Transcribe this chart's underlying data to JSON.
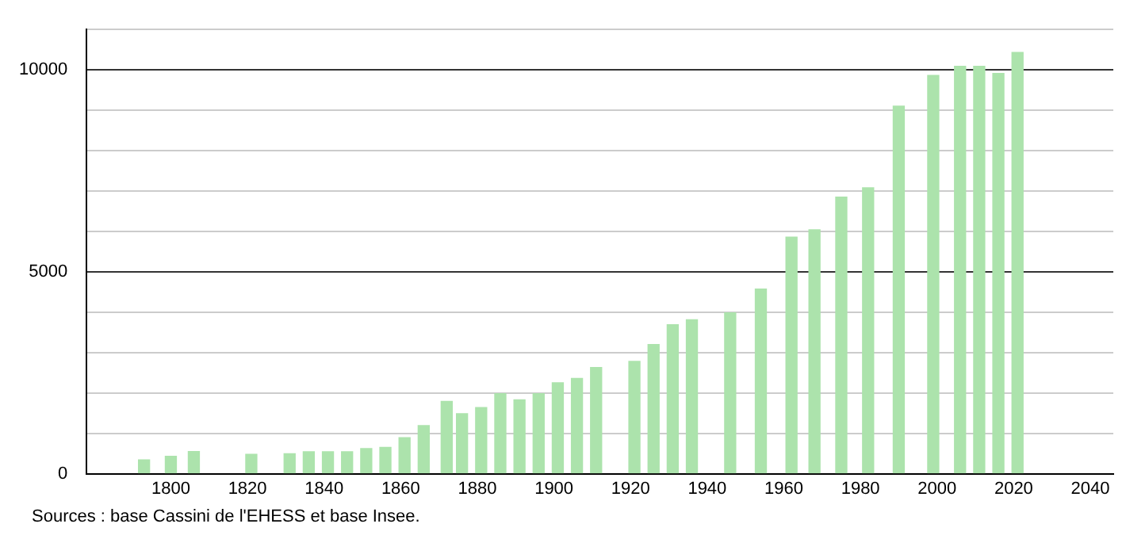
{
  "chart_data": {
    "type": "bar",
    "x": [
      1793,
      1800,
      1806,
      1821,
      1831,
      1836,
      1841,
      1846,
      1851,
      1856,
      1861,
      1866,
      1872,
      1876,
      1881,
      1886,
      1891,
      1896,
      1901,
      1906,
      1911,
      1921,
      1926,
      1931,
      1936,
      1946,
      1954,
      1962,
      1968,
      1975,
      1982,
      1990,
      1999,
      2006,
      2011,
      2016,
      2021
    ],
    "values": [
      340,
      430,
      550,
      480,
      495,
      545,
      545,
      545,
      620,
      650,
      890,
      1190,
      1790,
      1485,
      1640,
      1980,
      1830,
      1980,
      2250,
      2360,
      2630,
      2780,
      3200,
      3690,
      3810,
      3985,
      4570,
      5860,
      6040,
      6850,
      7080,
      9100,
      9860,
      10090,
      10090,
      9910,
      10430
    ],
    "color": "#ace3ac",
    "xlim": [
      1778,
      2046
    ],
    "xticks": [
      1800,
      1820,
      1840,
      1860,
      1880,
      1900,
      1920,
      1940,
      1960,
      1980,
      2000,
      2020,
      2040
    ],
    "ylim": [
      0,
      11000
    ],
    "yticks": [
      0,
      {
        "value": 1000,
        "label": null
      },
      {
        "value": 2000,
        "label": null
      },
      {
        "value": 3000,
        "label": null
      },
      {
        "value": 4000,
        "label": null
      },
      5000,
      {
        "value": 6000,
        "label": null
      },
      {
        "value": 7000,
        "label": null
      },
      {
        "value": 8000,
        "label": null
      },
      {
        "value": 9000,
        "label": null
      },
      10000,
      {
        "value": 11000,
        "label": null
      }
    ],
    "grid": "y",
    "annotations": [
      "Sources : base Cassini de l'EHESS et base Insee."
    ]
  }
}
